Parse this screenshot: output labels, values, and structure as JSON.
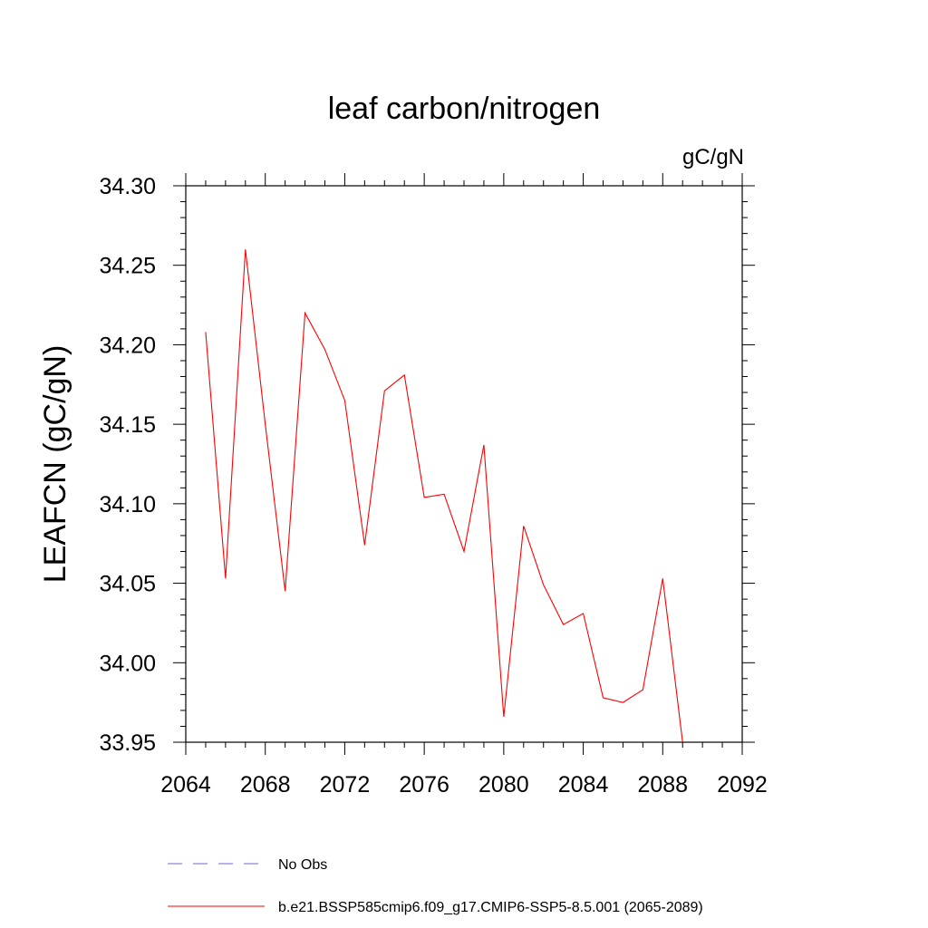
{
  "chart_data": {
    "type": "line",
    "title": "leaf carbon/nitrogen",
    "units_label": "gC/gN",
    "ylabel": "LEAFCN  (gC/gN)",
    "xlabel": "",
    "xlim": [
      2064,
      2092
    ],
    "ylim": [
      33.95,
      34.3
    ],
    "x_ticks": [
      2064,
      2068,
      2072,
      2076,
      2080,
      2084,
      2088,
      2092
    ],
    "x_tick_labels": [
      "2064",
      "2068",
      "2072",
      "2076",
      "2080",
      "2084",
      "2088",
      "2092"
    ],
    "y_ticks": [
      33.95,
      34.0,
      34.05,
      34.1,
      34.15,
      34.2,
      34.25,
      34.3
    ],
    "y_tick_labels": [
      "33.95",
      "34.00",
      "34.05",
      "34.10",
      "34.15",
      "34.20",
      "34.25",
      "34.30"
    ],
    "series": [
      {
        "name": "b.e21.BSSP585cmip6.f09_g17.CMIP6-SSP5-8.5.001 (2065-2089)",
        "color": "#ff0000",
        "style": "solid",
        "x": [
          2065,
          2066,
          2067,
          2068,
          2069,
          2070,
          2071,
          2072,
          2073,
          2074,
          2075,
          2076,
          2077,
          2078,
          2079,
          2080,
          2081,
          2082,
          2083,
          2084,
          2085,
          2086,
          2087,
          2088,
          2089
        ],
        "values": [
          34.208,
          34.053,
          34.26,
          34.15,
          34.045,
          34.22,
          34.197,
          34.165,
          34.074,
          34.171,
          34.181,
          34.104,
          34.106,
          34.07,
          34.137,
          33.966,
          34.086,
          34.049,
          34.024,
          34.031,
          33.978,
          33.975,
          33.983,
          34.053,
          33.95
        ]
      }
    ],
    "legend": {
      "placement": "bottom",
      "entries": [
        {
          "label": "No Obs",
          "color": "#6a6ad0",
          "style": "dashed"
        },
        {
          "label": "b.e21.BSSP585cmip6.f09_g17.CMIP6-SSP5-8.5.001 (2065-2089)",
          "color": "#ff0000",
          "style": "solid"
        }
      ]
    }
  }
}
